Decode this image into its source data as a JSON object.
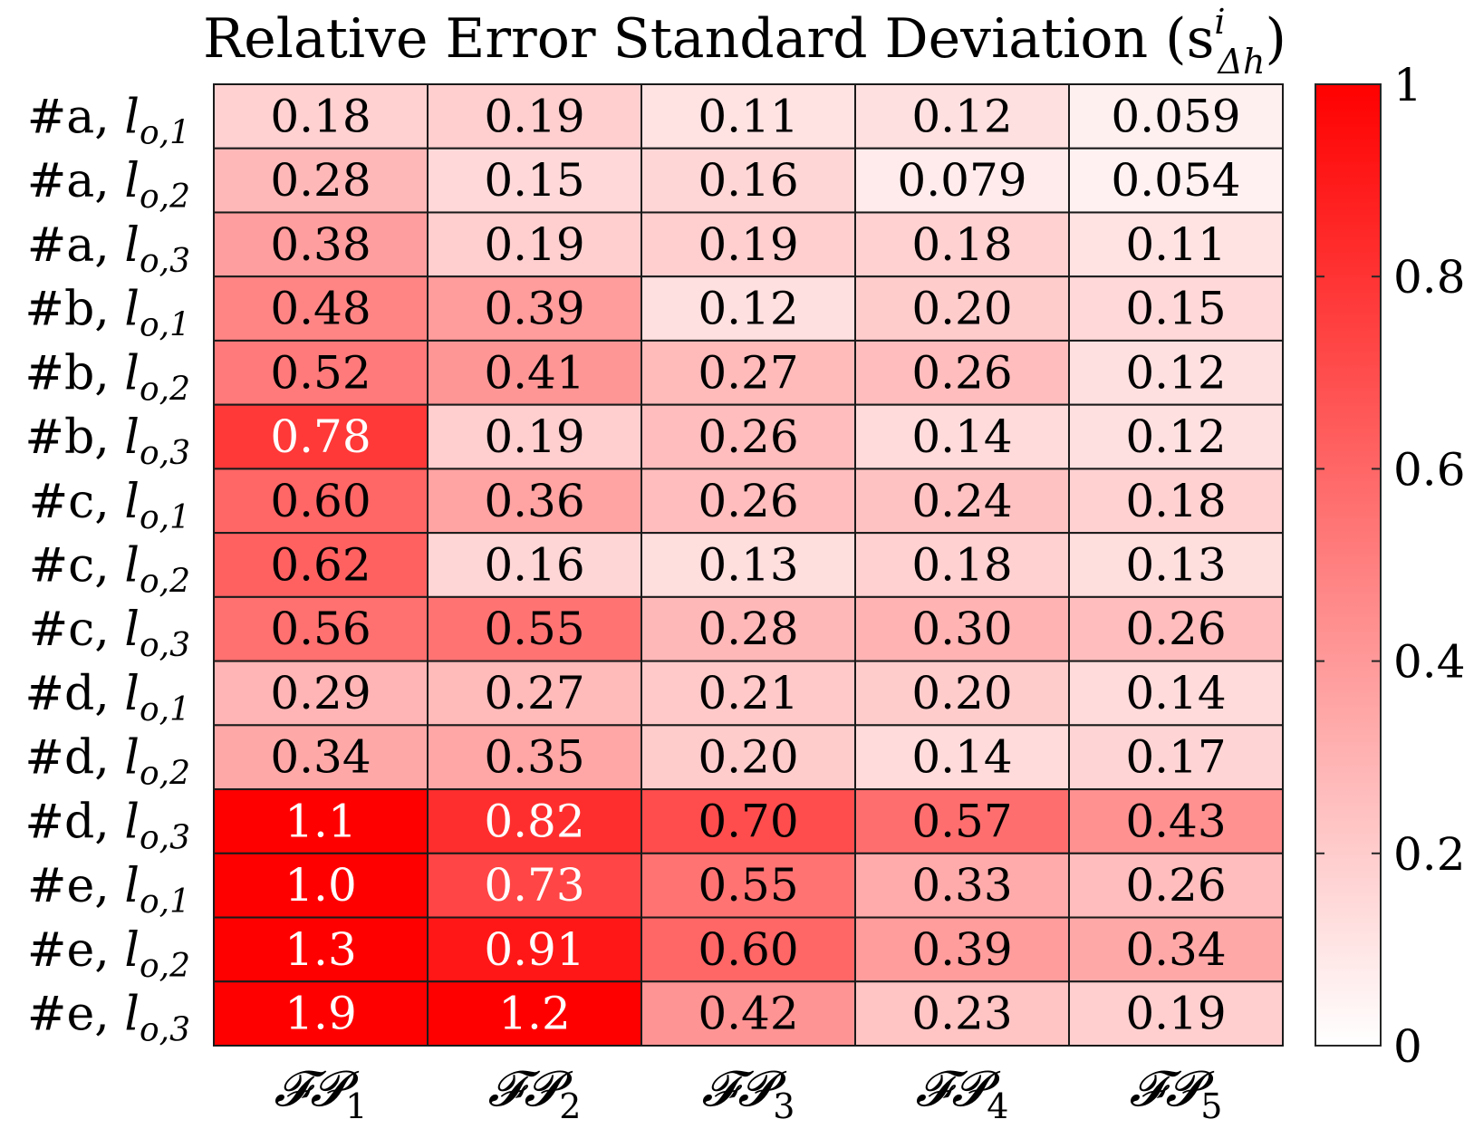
{
  "chart_data": {
    "type": "heatmap",
    "title": "Relative Error Standard Deviation (s",
    "title_sup": "i",
    "title_sub": "Δh",
    "title_close": ")",
    "columns": [
      {
        "base": "𝓕𝓟",
        "sub": "1"
      },
      {
        "base": "𝓕𝓟",
        "sub": "2"
      },
      {
        "base": "𝓕𝓟",
        "sub": "3"
      },
      {
        "base": "𝓕𝓟",
        "sub": "4"
      },
      {
        "base": "𝓕𝓟",
        "sub": "5"
      }
    ],
    "rows": [
      {
        "prefix": "#a, ",
        "l": "l",
        "sub": "o,1"
      },
      {
        "prefix": "#a, ",
        "l": "l",
        "sub": "o,2"
      },
      {
        "prefix": "#a, ",
        "l": "l",
        "sub": "o,3"
      },
      {
        "prefix": "#b, ",
        "l": "l",
        "sub": "o,1"
      },
      {
        "prefix": "#b, ",
        "l": "l",
        "sub": "o,2"
      },
      {
        "prefix": "#b, ",
        "l": "l",
        "sub": "o,3"
      },
      {
        "prefix": "#c, ",
        "l": "l",
        "sub": "o,1"
      },
      {
        "prefix": "#c, ",
        "l": "l",
        "sub": "o,2"
      },
      {
        "prefix": "#c, ",
        "l": "l",
        "sub": "o,3"
      },
      {
        "prefix": "#d, ",
        "l": "l",
        "sub": "o,1"
      },
      {
        "prefix": "#d, ",
        "l": "l",
        "sub": "o,2"
      },
      {
        "prefix": "#d, ",
        "l": "l",
        "sub": "o,3"
      },
      {
        "prefix": "#e, ",
        "l": "l",
        "sub": "o,1"
      },
      {
        "prefix": "#e, ",
        "l": "l",
        "sub": "o,2"
      },
      {
        "prefix": "#e, ",
        "l": "l",
        "sub": "o,3"
      }
    ],
    "values": [
      [
        0.18,
        0.19,
        0.11,
        0.12,
        0.059
      ],
      [
        0.28,
        0.15,
        0.16,
        0.079,
        0.054
      ],
      [
        0.38,
        0.19,
        0.19,
        0.18,
        0.11
      ],
      [
        0.48,
        0.39,
        0.12,
        0.2,
        0.15
      ],
      [
        0.52,
        0.41,
        0.27,
        0.26,
        0.12
      ],
      [
        0.78,
        0.19,
        0.26,
        0.14,
        0.12
      ],
      [
        0.6,
        0.36,
        0.26,
        0.24,
        0.18
      ],
      [
        0.62,
        0.16,
        0.13,
        0.18,
        0.13
      ],
      [
        0.56,
        0.55,
        0.28,
        0.3,
        0.26
      ],
      [
        0.29,
        0.27,
        0.21,
        0.2,
        0.14
      ],
      [
        0.34,
        0.35,
        0.2,
        0.14,
        0.17
      ],
      [
        1.1,
        0.82,
        0.7,
        0.57,
        0.43
      ],
      [
        1.0,
        0.73,
        0.55,
        0.33,
        0.26
      ],
      [
        1.3,
        0.91,
        0.6,
        0.39,
        0.34
      ],
      [
        1.9,
        1.2,
        0.42,
        0.23,
        0.19
      ]
    ],
    "value_labels": [
      [
        "0.18",
        "0.19",
        "0.11",
        "0.12",
        "0.059"
      ],
      [
        "0.28",
        "0.15",
        "0.16",
        "0.079",
        "0.054"
      ],
      [
        "0.38",
        "0.19",
        "0.19",
        "0.18",
        "0.11"
      ],
      [
        "0.48",
        "0.39",
        "0.12",
        "0.20",
        "0.15"
      ],
      [
        "0.52",
        "0.41",
        "0.27",
        "0.26",
        "0.12"
      ],
      [
        "0.78",
        "0.19",
        "0.26",
        "0.14",
        "0.12"
      ],
      [
        "0.60",
        "0.36",
        "0.26",
        "0.24",
        "0.18"
      ],
      [
        "0.62",
        "0.16",
        "0.13",
        "0.18",
        "0.13"
      ],
      [
        "0.56",
        "0.55",
        "0.28",
        "0.30",
        "0.26"
      ],
      [
        "0.29",
        "0.27",
        "0.21",
        "0.20",
        "0.14"
      ],
      [
        "0.34",
        "0.35",
        "0.20",
        "0.14",
        "0.17"
      ],
      [
        "1.1",
        "0.82",
        "0.70",
        "0.57",
        "0.43"
      ],
      [
        "1.0",
        "0.73",
        "0.55",
        "0.33",
        "0.26"
      ],
      [
        "1.3",
        "0.91",
        "0.60",
        "0.39",
        "0.34"
      ],
      [
        "1.9",
        "1.2",
        "0.42",
        "0.23",
        "0.19"
      ]
    ],
    "color_range": [
      0,
      1
    ],
    "colormap": {
      "low": "#ffffff",
      "high": "#ff0000"
    },
    "light_text_threshold": 0.72,
    "colorbar": {
      "ticks": [
        0,
        0.2,
        0.4,
        0.6,
        0.8,
        1
      ],
      "tick_labels": [
        "0",
        "0.2",
        "0.4",
        "0.6",
        "0.8",
        "1"
      ],
      "placement": "right"
    },
    "grid": true
  }
}
